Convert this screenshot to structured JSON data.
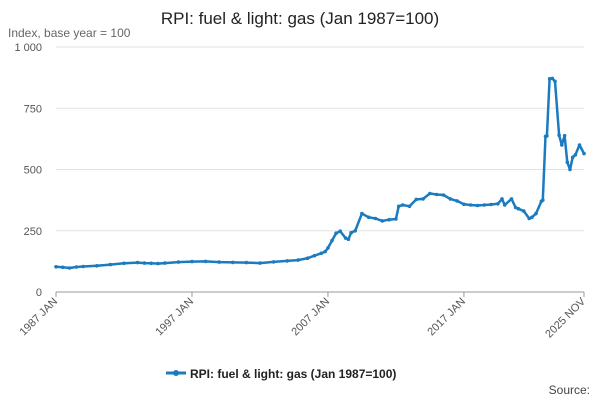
{
  "chart_data": {
    "type": "line",
    "title": "RPI: fuel & light: gas (Jan 1987=100)",
    "ylabel": "Index, base year = 100",
    "xlabel": "",
    "ylim": [
      0,
      1000
    ],
    "yticks": [
      0,
      250,
      500,
      750,
      1000
    ],
    "ytick_labels": [
      "0",
      "250",
      "500",
      "750",
      "1 000"
    ],
    "xlim": [
      1987.0,
      2025.83
    ],
    "xticks": [
      1987.0,
      1997.0,
      2007.0,
      2017.0,
      2025.83
    ],
    "xtick_labels": [
      "1987 JAN",
      "1997 JAN",
      "2007 JAN",
      "2017 JAN",
      "2025 NOV"
    ],
    "grid": true,
    "legend_position": "bottom",
    "source_label": "Source:",
    "colors": {
      "series": "#1a7bbf"
    },
    "series": [
      {
        "name": "RPI: fuel & light: gas (Jan 1987=100)",
        "x": [
          1987.0,
          1987.5,
          1988.0,
          1988.5,
          1989.0,
          1990.0,
          1991.0,
          1992.0,
          1993.0,
          1993.5,
          1994.0,
          1994.5,
          1995.0,
          1996.0,
          1997.0,
          1998.0,
          1999.0,
          2000.0,
          2001.0,
          2002.0,
          2003.0,
          2004.0,
          2004.8,
          2005.5,
          2006.0,
          2006.5,
          2006.8,
          2007.0,
          2007.3,
          2007.6,
          2007.9,
          2008.3,
          2008.5,
          2008.7,
          2009.0,
          2009.5,
          2010.0,
          2010.5,
          2011.0,
          2011.5,
          2012.0,
          2012.2,
          2012.5,
          2013.0,
          2013.5,
          2014.0,
          2014.5,
          2015.0,
          2015.5,
          2016.0,
          2016.5,
          2017.0,
          2017.5,
          2018.0,
          2018.5,
          2019.0,
          2019.5,
          2019.8,
          2020.0,
          2020.5,
          2020.8,
          2021.0,
          2021.4,
          2021.8,
          2022.0,
          2022.3,
          2022.7,
          2022.8,
          2023.0,
          2023.1,
          2023.3,
          2023.5,
          2023.7,
          2024.0,
          2024.2,
          2024.4,
          2024.6,
          2024.8,
          2025.0,
          2025.2,
          2025.5,
          2025.83
        ],
        "values": [
          103,
          101,
          98,
          102,
          104,
          107,
          112,
          117,
          120,
          118,
          117,
          116,
          118,
          122,
          124,
          125,
          122,
          121,
          120,
          118,
          123,
          127,
          130,
          138,
          148,
          158,
          165,
          180,
          210,
          240,
          248,
          220,
          215,
          242,
          250,
          320,
          305,
          300,
          290,
          295,
          298,
          350,
          355,
          350,
          378,
          380,
          402,
          398,
          396,
          380,
          372,
          358,
          355,
          353,
          355,
          357,
          360,
          380,
          355,
          380,
          345,
          340,
          330,
          300,
          305,
          320,
          370,
          375,
          635,
          637,
          870,
          872,
          860,
          640,
          600,
          638,
          530,
          500,
          550,
          560,
          600,
          565
        ]
      }
    ]
  }
}
